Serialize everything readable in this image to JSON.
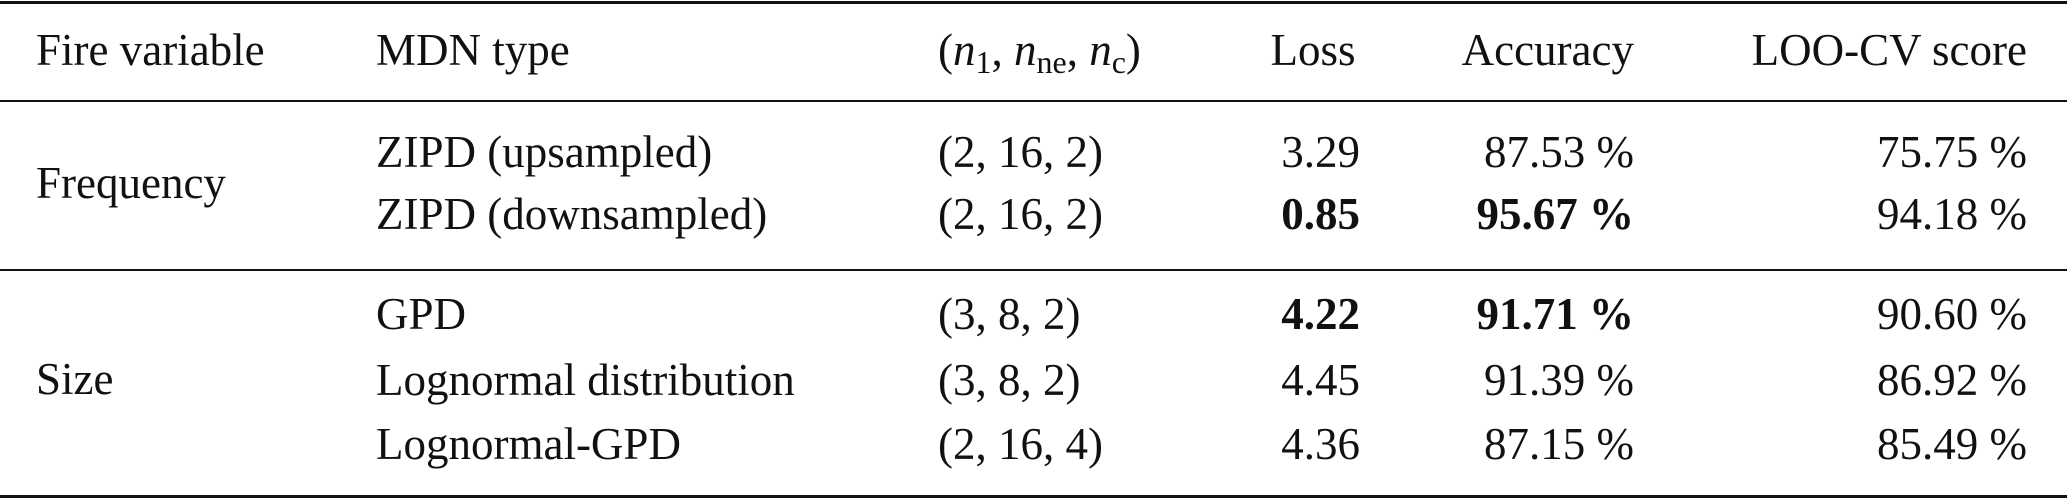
{
  "table": {
    "header": [
      "Fire variable",
      "MDN type",
      [
        {
          "text": "(",
          "style": "plain"
        },
        {
          "text": "n",
          "style": "italic"
        },
        {
          "text": "1",
          "style": "sub"
        },
        {
          "text": ", ",
          "style": "plain"
        },
        {
          "text": "n",
          "style": "italic"
        },
        {
          "text": "ne",
          "style": "sub"
        },
        {
          "text": ", ",
          "style": "plain"
        },
        {
          "text": "n",
          "style": "italic"
        },
        {
          "text": "c",
          "style": "sub"
        },
        {
          "text": ")",
          "style": "plain"
        }
      ],
      "Loss",
      "Accuracy",
      "LOO-CV score"
    ],
    "groups": [
      {
        "label": "Frequency",
        "rows": [
          {
            "cells": [
              "ZIPD (upsampled)",
              "(2, 16, 2)",
              "3.29",
              "87.53 %",
              "75.75 %"
            ],
            "bold": [
              false,
              false,
              false,
              false,
              false
            ]
          },
          {
            "cells": [
              "ZIPD (downsampled)",
              "(2, 16, 2)",
              "0.85",
              "95.67 %",
              "94.18 %"
            ],
            "bold": [
              false,
              false,
              true,
              true,
              false
            ]
          }
        ]
      },
      {
        "label": "Size",
        "rows": [
          {
            "cells": [
              "GPD",
              "(3, 8, 2)",
              "4.22",
              "91.71 %",
              "90.60 %"
            ],
            "bold": [
              false,
              false,
              true,
              true,
              false
            ]
          },
          {
            "cells": [
              "Lognormal distribution",
              "(3, 8, 2)",
              "4.45",
              "91.39 %",
              "86.92 %"
            ],
            "bold": [
              false,
              false,
              false,
              false,
              false
            ]
          },
          {
            "cells": [
              "Lognormal-GPD",
              "(2, 16, 4)",
              "4.36",
              "87.15 %",
              "85.49 %"
            ],
            "bold": [
              false,
              false,
              false,
              false,
              false
            ]
          }
        ]
      }
    ]
  }
}
